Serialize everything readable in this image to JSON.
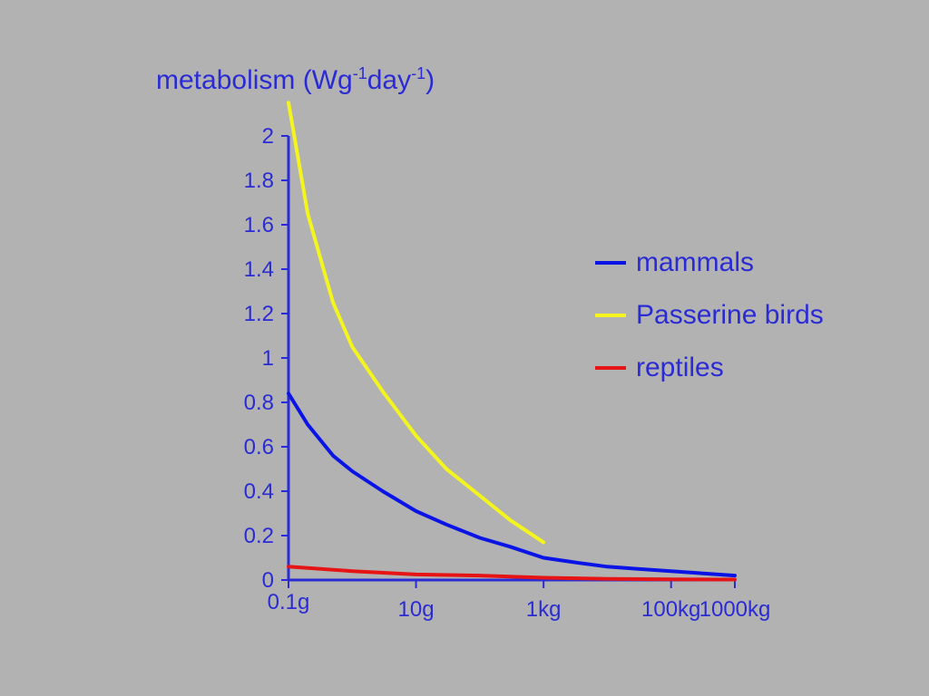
{
  "chart_data": {
    "type": "line",
    "title_main": "metabolism (Wg",
    "title_sup1": "-1",
    "title_mid": "day",
    "title_sup2": "-1",
    "title_end": ")",
    "ylim": [
      0,
      2
    ],
    "y_ticks": [
      "0",
      "0.2",
      "0.4",
      "0.6",
      "0.8",
      "1",
      "1.2",
      "1.4",
      "1.6",
      "1.8",
      "2"
    ],
    "x_tick_labels": [
      "0.1g",
      "10g",
      "1kg",
      "100kg",
      "1000kg"
    ],
    "x_scale": "log",
    "series": [
      {
        "name": "mammals",
        "color": "#0a14e6",
        "x": [
          "0.1g",
          "0.2g",
          "0.5g",
          "1g",
          "3g",
          "10g",
          "30g",
          "100g",
          "300g",
          "1kg",
          "3kg",
          "10kg",
          "30kg",
          "100kg",
          "300kg",
          "1000kg"
        ],
        "y": [
          0.84,
          0.7,
          0.56,
          0.49,
          0.4,
          0.31,
          0.25,
          0.19,
          0.15,
          0.1,
          0.08,
          0.06,
          0.05,
          0.04,
          0.03,
          0.02
        ]
      },
      {
        "name": "Passerine birds",
        "color": "#f5f51e",
        "x": [
          "0.1g",
          "0.2g",
          "0.5g",
          "1g",
          "3g",
          "10g",
          "30g",
          "100g",
          "300g",
          "1kg"
        ],
        "y": [
          2.15,
          1.65,
          1.25,
          1.05,
          0.85,
          0.65,
          0.5,
          0.38,
          0.27,
          0.17
        ]
      },
      {
        "name": "reptiles",
        "color": "#e61414",
        "x": [
          "0.1g",
          "1g",
          "10g",
          "100g",
          "1kg",
          "10kg",
          "100kg",
          "1000kg"
        ],
        "y": [
          0.06,
          0.04,
          0.025,
          0.02,
          0.01,
          0.005,
          0.003,
          0.002
        ]
      }
    ]
  }
}
